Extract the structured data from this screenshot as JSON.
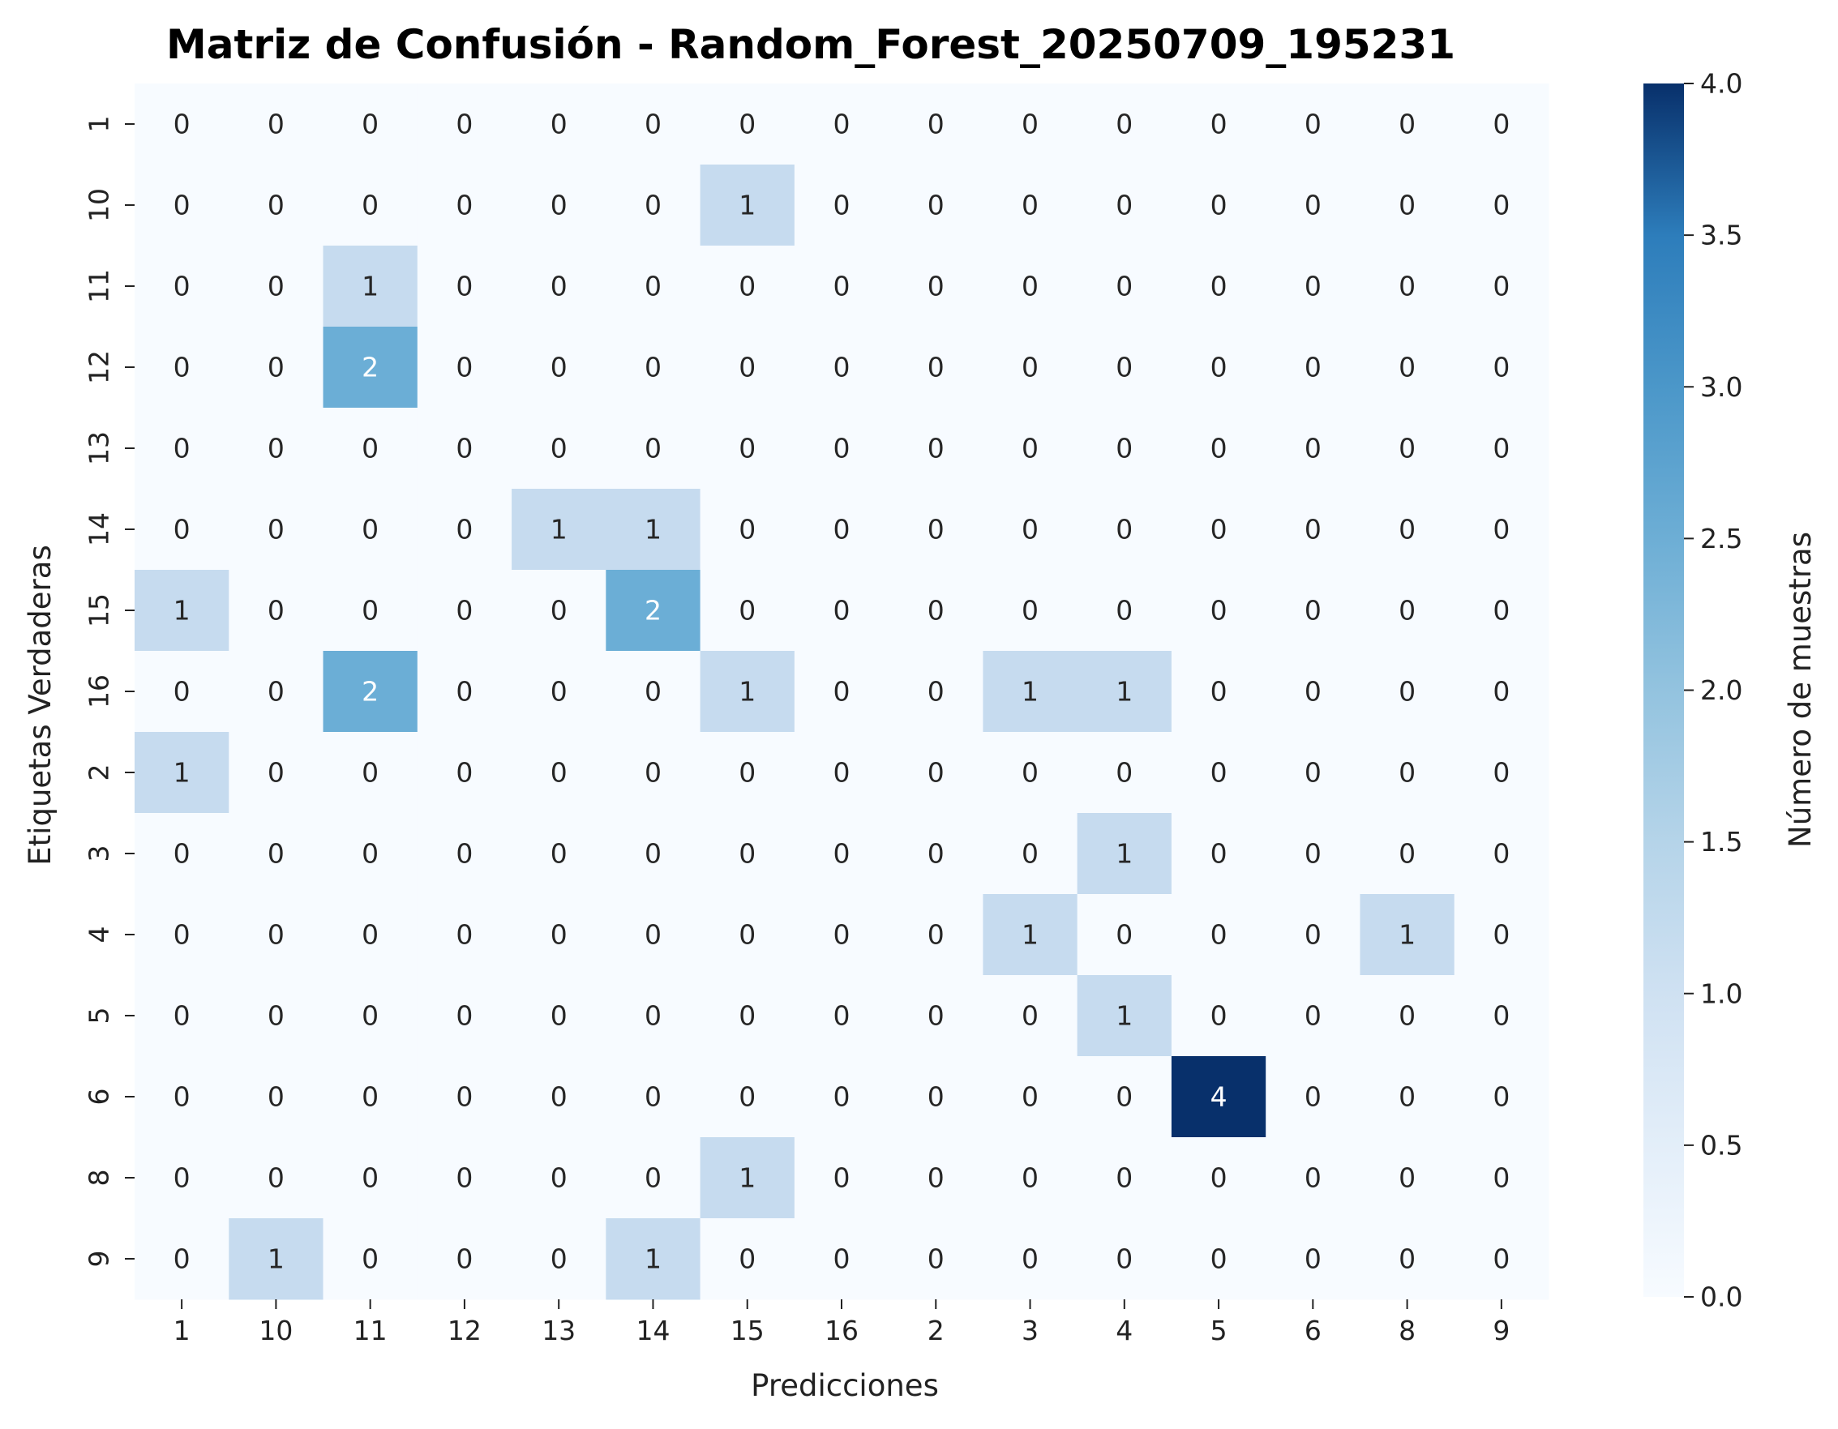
{
  "chart_data": {
    "type": "heatmap",
    "title": "Matriz de Confusión - Random_Forest_20250709_195231",
    "xlabel": "Predicciones",
    "ylabel": "Etiquetas Verdaderas",
    "x_categories": [
      "1",
      "10",
      "11",
      "12",
      "13",
      "14",
      "15",
      "16",
      "2",
      "3",
      "4",
      "5",
      "6",
      "8",
      "9"
    ],
    "y_categories": [
      "1",
      "10",
      "11",
      "12",
      "13",
      "14",
      "15",
      "16",
      "2",
      "3",
      "4",
      "5",
      "6",
      "8",
      "9"
    ],
    "matrix": [
      [
        0,
        0,
        0,
        0,
        0,
        0,
        0,
        0,
        0,
        0,
        0,
        0,
        0,
        0,
        0
      ],
      [
        0,
        0,
        0,
        0,
        0,
        0,
        1,
        0,
        0,
        0,
        0,
        0,
        0,
        0,
        0
      ],
      [
        0,
        0,
        1,
        0,
        0,
        0,
        0,
        0,
        0,
        0,
        0,
        0,
        0,
        0,
        0
      ],
      [
        0,
        0,
        2,
        0,
        0,
        0,
        0,
        0,
        0,
        0,
        0,
        0,
        0,
        0,
        0
      ],
      [
        0,
        0,
        0,
        0,
        0,
        0,
        0,
        0,
        0,
        0,
        0,
        0,
        0,
        0,
        0
      ],
      [
        0,
        0,
        0,
        0,
        1,
        1,
        0,
        0,
        0,
        0,
        0,
        0,
        0,
        0,
        0
      ],
      [
        1,
        0,
        0,
        0,
        0,
        2,
        0,
        0,
        0,
        0,
        0,
        0,
        0,
        0,
        0
      ],
      [
        0,
        0,
        2,
        0,
        0,
        0,
        1,
        0,
        0,
        1,
        1,
        0,
        0,
        0,
        0
      ],
      [
        1,
        0,
        0,
        0,
        0,
        0,
        0,
        0,
        0,
        0,
        0,
        0,
        0,
        0,
        0
      ],
      [
        0,
        0,
        0,
        0,
        0,
        0,
        0,
        0,
        0,
        0,
        1,
        0,
        0,
        0,
        0
      ],
      [
        0,
        0,
        0,
        0,
        0,
        0,
        0,
        0,
        0,
        1,
        0,
        0,
        0,
        1,
        0
      ],
      [
        0,
        0,
        0,
        0,
        0,
        0,
        0,
        0,
        0,
        0,
        1,
        0,
        0,
        0,
        0
      ],
      [
        0,
        0,
        0,
        0,
        0,
        0,
        0,
        0,
        0,
        0,
        0,
        4,
        0,
        0,
        0
      ],
      [
        0,
        0,
        0,
        0,
        0,
        0,
        1,
        0,
        0,
        0,
        0,
        0,
        0,
        0,
        0
      ],
      [
        0,
        1,
        0,
        0,
        0,
        1,
        0,
        0,
        0,
        0,
        0,
        0,
        0,
        0,
        0
      ]
    ],
    "colormap": "Blues",
    "colorbar": {
      "label": "Número de muestras",
      "range": [
        0,
        4
      ],
      "ticks": [
        "0.0",
        "0.5",
        "1.0",
        "1.5",
        "2.0",
        "2.5",
        "3.0",
        "3.5",
        "4.0"
      ]
    },
    "annotation_colors": {
      "dark_text": "#262626",
      "light_text": "#ffffff"
    }
  }
}
